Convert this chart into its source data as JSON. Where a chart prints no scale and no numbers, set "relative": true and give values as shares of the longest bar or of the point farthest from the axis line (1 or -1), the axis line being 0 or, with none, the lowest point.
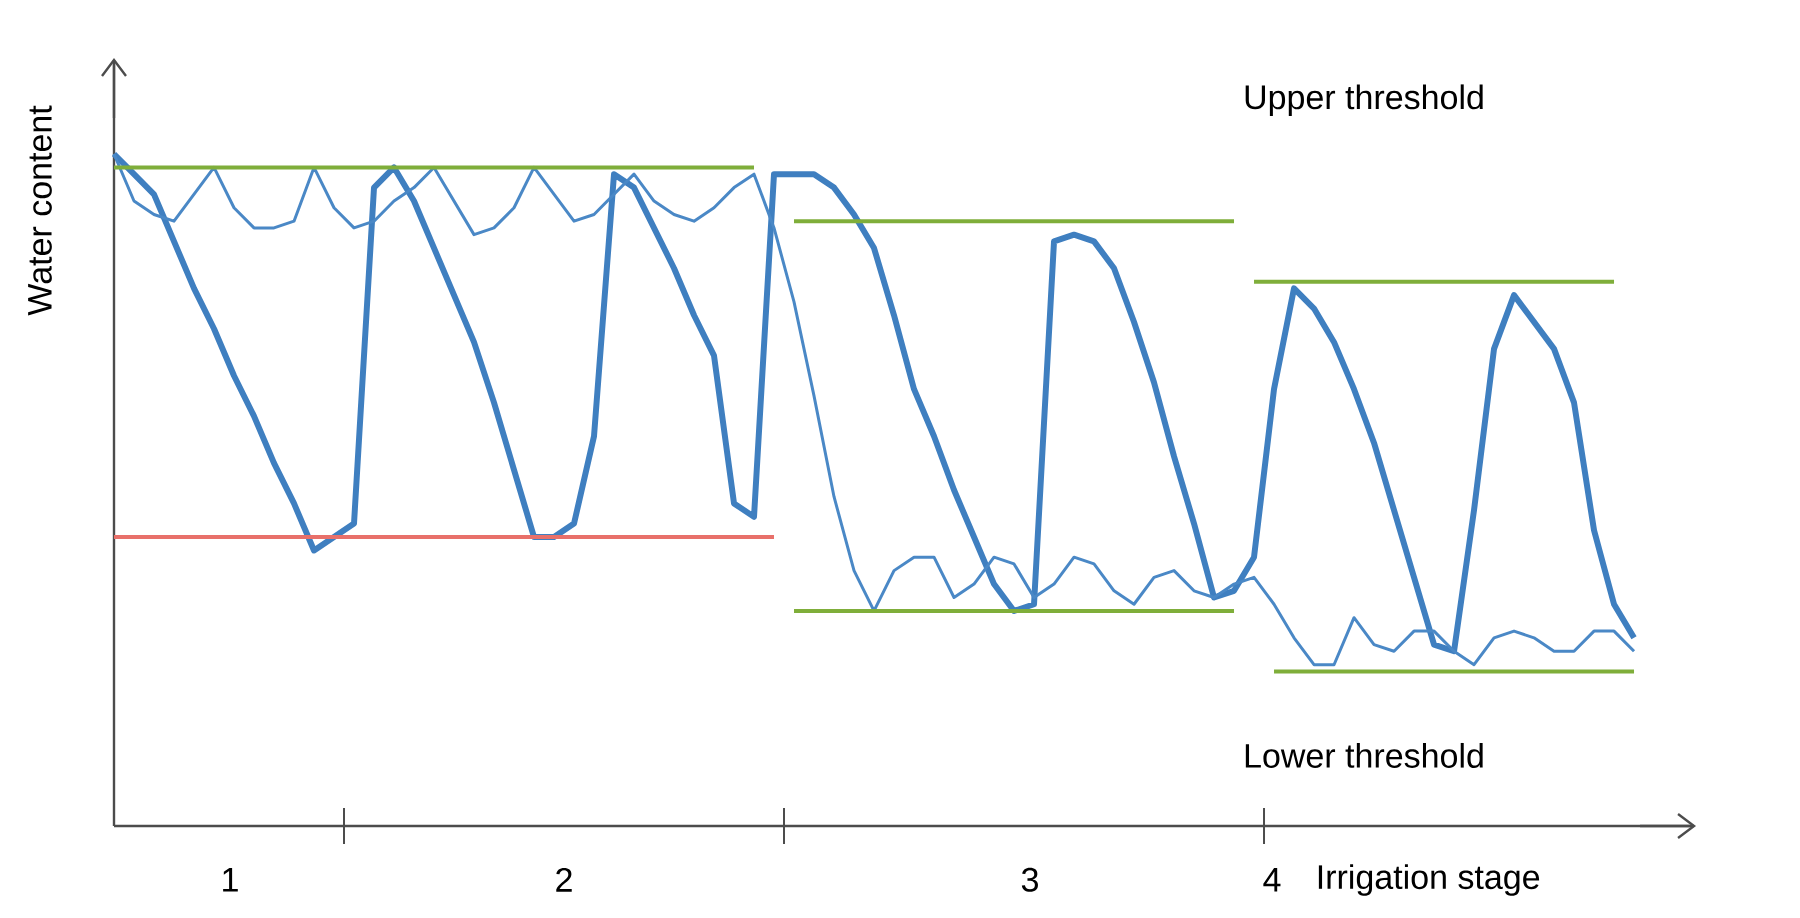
{
  "chart_data": {
    "type": "line",
    "relative": true,
    "xlabel": "Irrigation stage",
    "ylabel": "Water content",
    "annotations": [
      "Upper threshold",
      "Lower threshold",
      "1",
      "2",
      "3",
      "4"
    ],
    "categories": [
      null,
      null,
      null,
      null,
      null,
      null,
      null,
      null,
      null,
      null,
      null,
      null,
      null,
      null,
      null,
      null,
      null,
      null,
      null,
      null,
      null,
      null,
      null,
      null,
      null,
      null,
      null,
      null,
      null,
      null,
      null,
      null,
      null,
      null,
      null,
      null,
      null,
      null,
      null,
      null,
      null,
      null,
      null,
      null,
      null,
      null,
      null,
      null,
      null,
      null,
      null,
      null,
      null,
      null,
      null,
      null,
      null,
      null,
      null,
      null,
      null,
      null,
      null,
      null,
      null,
      null,
      null,
      null,
      null,
      null,
      null,
      null,
      null,
      null,
      null,
      null,
      null
    ],
    "series": [
      {
        "color": "#3f7fc0",
        "values": [
          1.0,
          0.97,
          0.94,
          0.87,
          0.8,
          0.74,
          0.67,
          0.61,
          0.54,
          0.48,
          0.41,
          0.43,
          0.45,
          0.95,
          0.98,
          0.93,
          0.86,
          0.79,
          0.72,
          0.63,
          0.53,
          0.43,
          0.43,
          0.45,
          0.58,
          0.97,
          0.95,
          0.89,
          0.83,
          0.76,
          0.7,
          0.48,
          0.46,
          0.97,
          0.97,
          0.97,
          0.95,
          0.91,
          0.86,
          0.76,
          0.65,
          0.58,
          0.5,
          0.43,
          0.36,
          0.32,
          0.33,
          0.87,
          0.88,
          0.87,
          0.83,
          0.75,
          0.66,
          0.55,
          0.45,
          0.34,
          0.35,
          0.4,
          0.65,
          0.8,
          0.77,
          0.72,
          0.65,
          0.57,
          0.47,
          0.37,
          0.27,
          0.26,
          0.47,
          0.71,
          0.79,
          0.75,
          0.71,
          0.63,
          0.44,
          0.33,
          0.28
        ]
      },
      {
        "color": "#4a88c6",
        "values": [
          1.0,
          0.93,
          0.91,
          0.9,
          0.94,
          0.98,
          0.92,
          0.89,
          0.89,
          0.9,
          0.98,
          0.92,
          0.89,
          0.9,
          0.93,
          0.95,
          0.98,
          0.93,
          0.88,
          0.89,
          0.92,
          0.98,
          0.94,
          0.9,
          0.91,
          0.94,
          0.97,
          0.93,
          0.91,
          0.9,
          0.92,
          0.95,
          0.97,
          0.89,
          0.78,
          0.64,
          0.49,
          0.38,
          0.32,
          0.38,
          0.4,
          0.4,
          0.34,
          0.36,
          0.4,
          0.39,
          0.34,
          0.36,
          0.4,
          0.39,
          0.35,
          0.33,
          0.37,
          0.38,
          0.35,
          0.34,
          0.36,
          0.37,
          0.33,
          0.28,
          0.24,
          0.24,
          0.31,
          0.27,
          0.26,
          0.29,
          0.29,
          0.26,
          0.24,
          0.28,
          0.29,
          0.28,
          0.26,
          0.26,
          0.29,
          0.29,
          0.26
        ]
      },
      {
        "color": "#7fae3a",
        "values": [
          0.98,
          0.98,
          0.98,
          0.98,
          0.98,
          0.98,
          0.98,
          0.98,
          0.98,
          0.98,
          0.98,
          0.98,
          0.98,
          0.98,
          0.98,
          0.98,
          0.98,
          0.98,
          0.98,
          0.98,
          0.98,
          0.98,
          0.98,
          0.98,
          0.98,
          0.98,
          0.98,
          0.98,
          0.98,
          0.98,
          0.98,
          0.98,
          0.98,
          null,
          null,
          null,
          null,
          null,
          null,
          null,
          null,
          null,
          null,
          null,
          null,
          null,
          null,
          null,
          null,
          null,
          null,
          null,
          null,
          null,
          null,
          null,
          null,
          null,
          null,
          null,
          null,
          null,
          null,
          null,
          null,
          null,
          null,
          null,
          null,
          null,
          null,
          null,
          null,
          null,
          null,
          null,
          null
        ]
      },
      {
        "color": "#e8706a",
        "values": [
          0.43,
          0.43,
          0.43,
          0.43,
          0.43,
          0.43,
          0.43,
          0.43,
          0.43,
          0.43,
          0.43,
          0.43,
          0.43,
          0.43,
          0.43,
          0.43,
          0.43,
          0.43,
          0.43,
          0.43,
          0.43,
          0.43,
          0.43,
          0.43,
          0.43,
          0.43,
          0.43,
          0.43,
          0.43,
          0.43,
          0.43,
          0.43,
          0.43,
          0.43,
          null,
          null,
          null,
          null,
          null,
          null,
          null,
          null,
          null,
          null,
          null,
          null,
          null,
          null,
          null,
          null,
          null,
          null,
          null,
          null,
          null,
          null,
          null,
          null,
          null,
          null,
          null,
          null,
          null,
          null,
          null,
          null,
          null,
          null,
          null,
          null,
          null,
          null,
          null,
          null,
          null,
          null,
          null
        ]
      },
      {
        "color": "#7fae3a",
        "values": [
          null,
          null,
          null,
          null,
          null,
          null,
          null,
          null,
          null,
          null,
          null,
          null,
          null,
          null,
          null,
          null,
          null,
          null,
          null,
          null,
          null,
          null,
          null,
          null,
          null,
          null,
          null,
          null,
          null,
          null,
          null,
          null,
          null,
          null,
          0.9,
          0.9,
          0.9,
          0.9,
          0.9,
          0.9,
          0.9,
          0.9,
          0.9,
          0.9,
          0.9,
          0.9,
          0.9,
          0.9,
          0.9,
          0.9,
          0.9,
          0.9,
          0.9,
          0.9,
          0.9,
          0.9,
          0.9,
          null,
          null,
          null,
          null,
          null,
          null,
          null,
          null,
          null,
          null,
          null,
          null,
          null,
          null,
          null,
          null,
          null,
          null,
          null,
          null
        ]
      },
      {
        "color": "#7fae3a",
        "values": [
          null,
          null,
          null,
          null,
          null,
          null,
          null,
          null,
          null,
          null,
          null,
          null,
          null,
          null,
          null,
          null,
          null,
          null,
          null,
          null,
          null,
          null,
          null,
          null,
          null,
          null,
          null,
          null,
          null,
          null,
          null,
          null,
          null,
          null,
          0.32,
          0.32,
          0.32,
          0.32,
          0.32,
          0.32,
          0.32,
          0.32,
          0.32,
          0.32,
          0.32,
          0.32,
          0.32,
          0.32,
          0.32,
          0.32,
          0.32,
          0.32,
          0.32,
          0.32,
          0.32,
          0.32,
          0.32,
          null,
          null,
          null,
          null,
          null,
          null,
          null,
          null,
          null,
          null,
          null,
          null,
          null,
          null,
          null,
          null,
          null,
          null,
          null,
          null
        ]
      },
      {
        "color": "#7fae3a",
        "values": [
          null,
          null,
          null,
          null,
          null,
          null,
          null,
          null,
          null,
          null,
          null,
          null,
          null,
          null,
          null,
          null,
          null,
          null,
          null,
          null,
          null,
          null,
          null,
          null,
          null,
          null,
          null,
          null,
          null,
          null,
          null,
          null,
          null,
          null,
          null,
          null,
          null,
          null,
          null,
          null,
          null,
          null,
          null,
          null,
          null,
          null,
          null,
          null,
          null,
          null,
          null,
          null,
          null,
          null,
          null,
          null,
          null,
          0.81,
          0.81,
          0.81,
          0.81,
          0.81,
          0.81,
          0.81,
          0.81,
          0.81,
          0.81,
          0.81,
          0.81,
          0.81,
          0.81,
          0.81,
          0.81,
          0.81,
          0.81,
          0.81,
          null
        ]
      },
      {
        "color": "#7fae3a",
        "values": [
          null,
          null,
          null,
          null,
          null,
          null,
          null,
          null,
          null,
          null,
          null,
          null,
          null,
          null,
          null,
          null,
          null,
          null,
          null,
          null,
          null,
          null,
          null,
          null,
          null,
          null,
          null,
          null,
          null,
          null,
          null,
          null,
          null,
          null,
          null,
          null,
          null,
          null,
          null,
          null,
          null,
          null,
          null,
          null,
          null,
          null,
          null,
          null,
          null,
          null,
          null,
          null,
          null,
          null,
          null,
          null,
          null,
          null,
          0.23,
          0.23,
          0.23,
          0.23,
          0.23,
          0.23,
          0.23,
          0.23,
          0.23,
          0.23,
          0.23,
          0.23,
          0.23,
          0.23,
          0.23,
          0.23,
          0.23,
          0.23,
          0.23
        ]
      }
    ]
  }
}
